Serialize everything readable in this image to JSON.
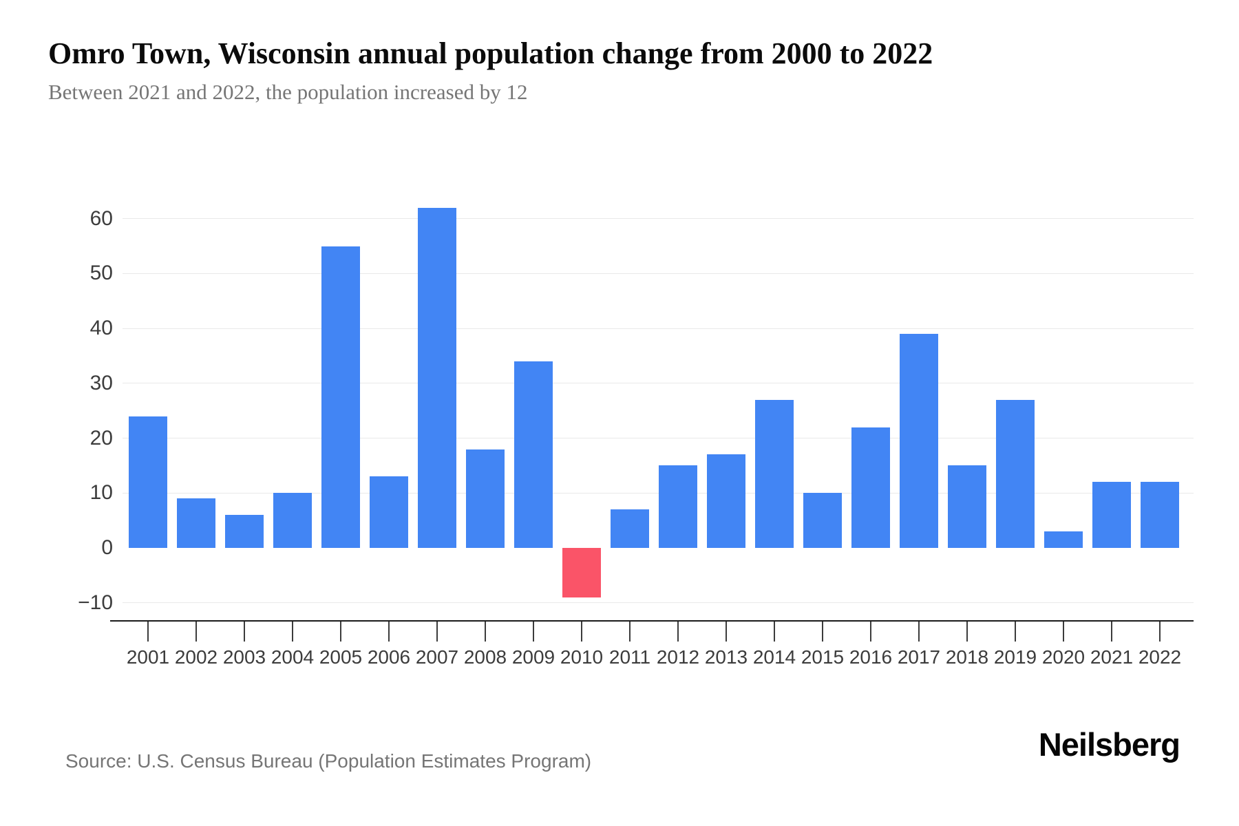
{
  "page": {
    "title": "Omro Town, Wisconsin annual population change from 2000 to 2022",
    "subtitle": "Between 2021 and 2022, the population increased by 12",
    "source": "Source: U.S. Census Bureau (Population Estimates Program)",
    "brand": "Neilsberg"
  },
  "colors": {
    "bar_positive": "#4285F4",
    "bar_negative": "#FA5468",
    "gridline": "#E9E9E9",
    "axis_line": "#1A1A1A",
    "tick_label": "#3C3C3C",
    "title_text": "#0B0B0B",
    "subtitle_text": "#757575",
    "source_text": "#757575"
  },
  "chart_data": {
    "type": "bar",
    "title": "Omro Town, Wisconsin annual population change from 2000 to 2022",
    "subtitle": "Between 2021 and 2022, the population increased by 12",
    "categories": [
      "2001",
      "2002",
      "2003",
      "2004",
      "2005",
      "2006",
      "2007",
      "2008",
      "2009",
      "2010",
      "2011",
      "2012",
      "2013",
      "2014",
      "2015",
      "2016",
      "2017",
      "2018",
      "2019",
      "2020",
      "2021",
      "2022"
    ],
    "values": [
      24,
      9,
      6,
      10,
      55,
      13,
      62,
      18,
      34,
      -9,
      7,
      15,
      17,
      27,
      10,
      22,
      39,
      15,
      27,
      3,
      12,
      12
    ],
    "xlabel": "",
    "ylabel": "",
    "ylim": [
      -13.5,
      63.5
    ],
    "yticks": [
      60,
      50,
      40,
      30,
      20,
      10,
      0,
      -10
    ],
    "ytick_labels": [
      "60",
      "50",
      "40",
      "30",
      "20",
      "10",
      "0",
      "−10"
    ],
    "grid": true,
    "legend": false,
    "negative_highlight_category": "2010"
  }
}
